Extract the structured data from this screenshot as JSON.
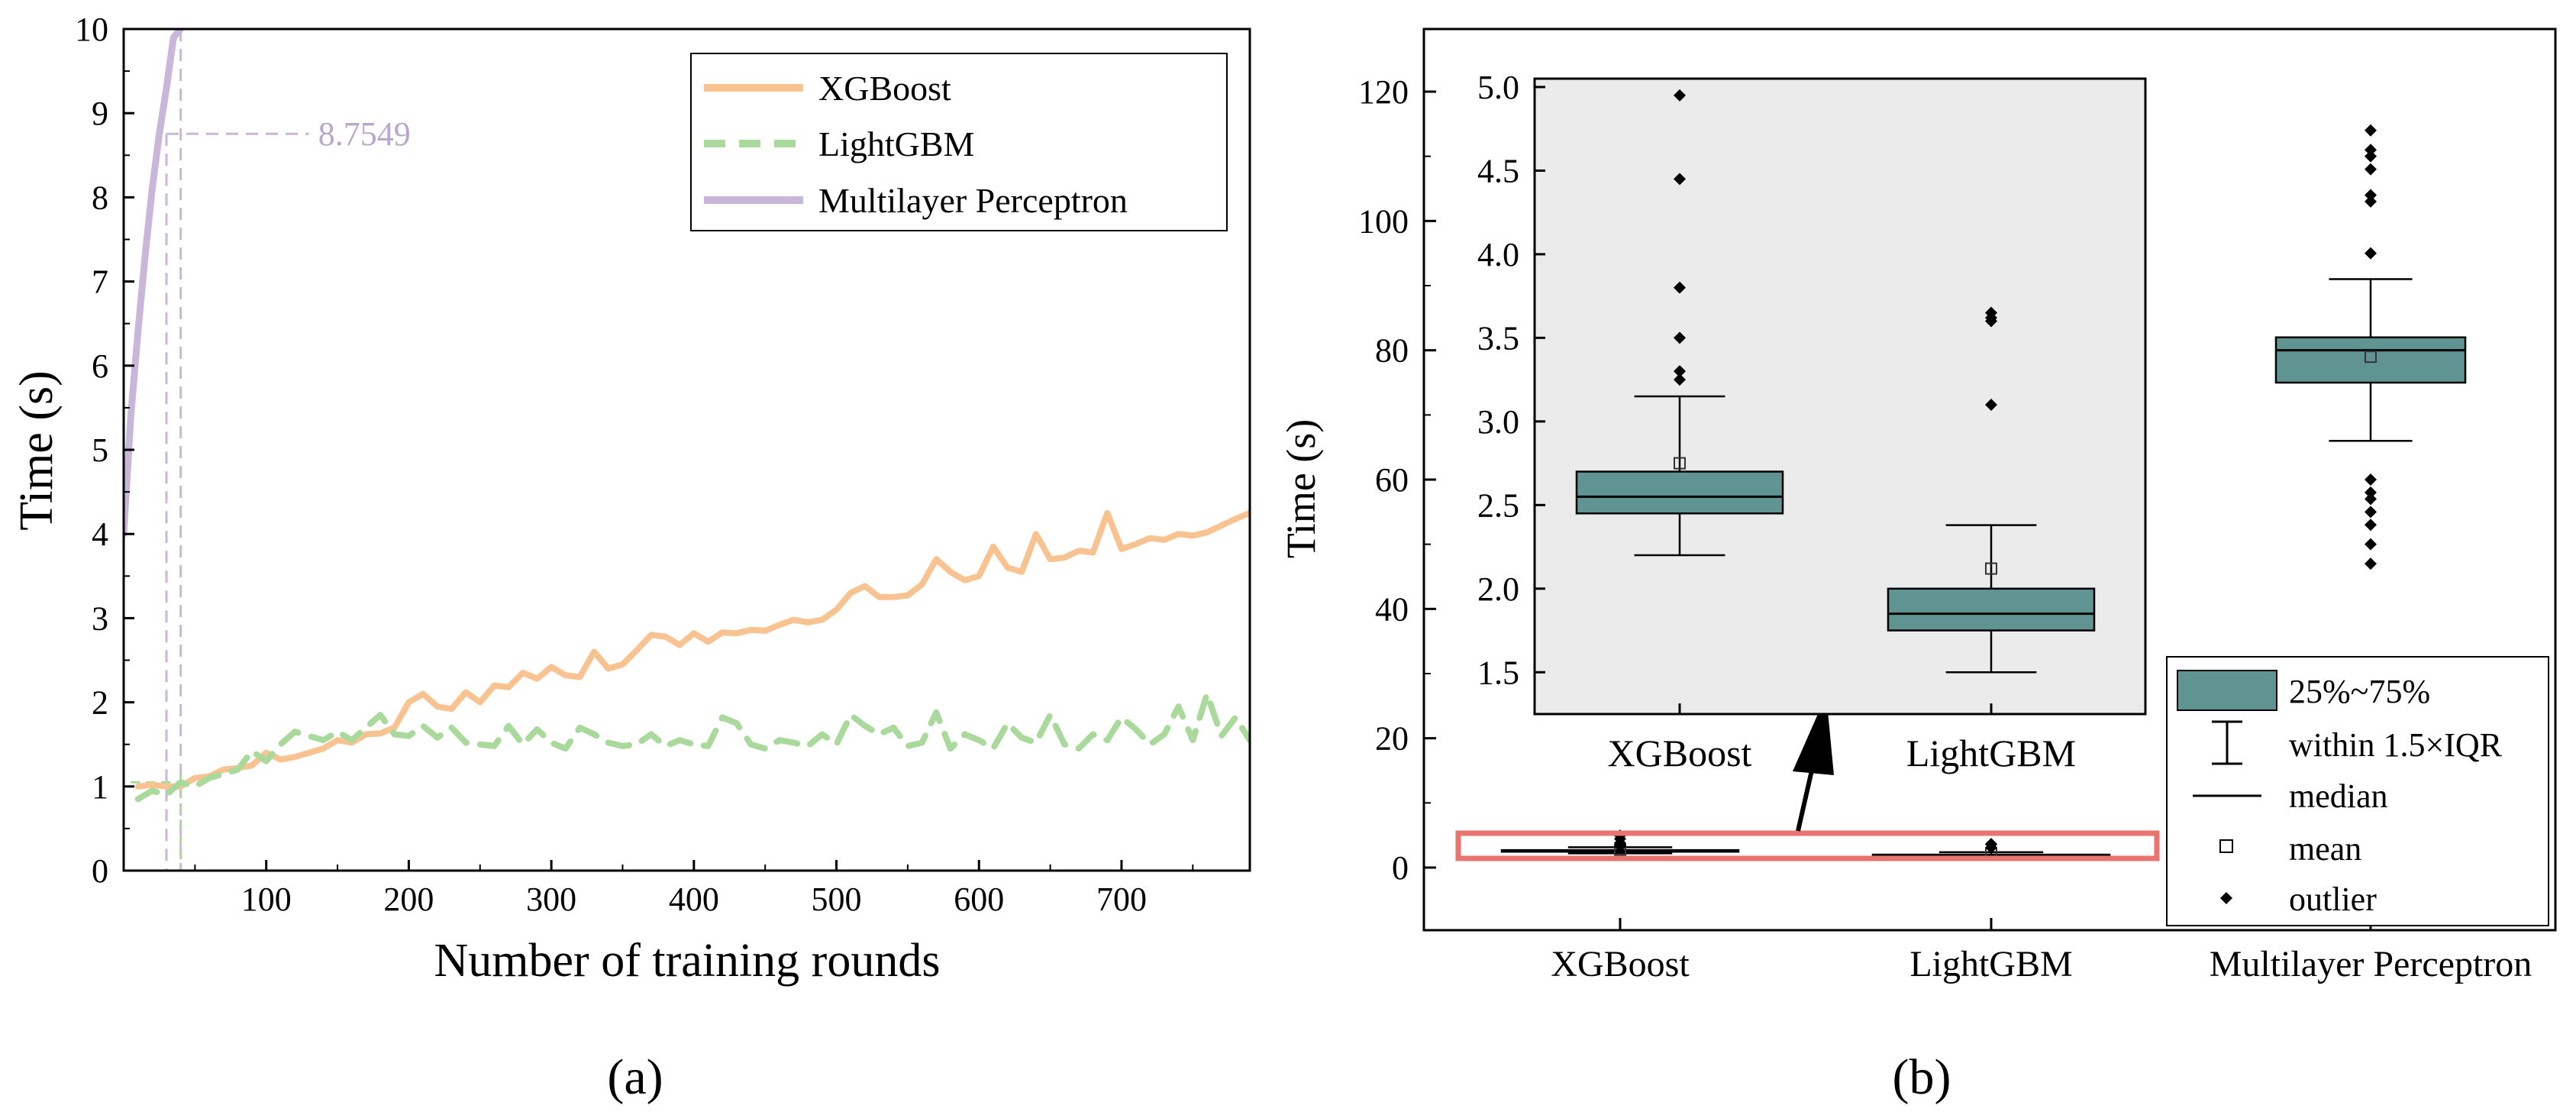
{
  "panels": {
    "a_label": "(a)",
    "b_label": "(b)"
  },
  "colors": {
    "xgboost": "#f9c391",
    "lightgbm": "#a9d99b",
    "mlp": "#c9b7d9",
    "box_fill": "#5f9493",
    "inset_bg": "#ebebeb",
    "highlight": "#e8736f"
  },
  "chart_data": [
    {
      "type": "line",
      "xlabel": "Number of training rounds",
      "ylabel": "Time (s)",
      "xlim": [
        0,
        790
      ],
      "ylim": [
        0,
        10
      ],
      "x_ticks": [
        "100",
        "200",
        "300",
        "400",
        "500",
        "600",
        "700"
      ],
      "y_ticks": [
        "0",
        "1",
        "2",
        "3",
        "4",
        "5",
        "6",
        "7",
        "8",
        "9",
        "10"
      ],
      "legend_position": "top-right",
      "grid": false,
      "annotation": {
        "text": "8.7549",
        "y": 8.7549,
        "x": 30
      },
      "series": [
        {
          "name": "XGBoost",
          "style": "solid",
          "x": [
            10,
            20,
            30,
            40,
            50,
            60,
            70,
            80,
            90,
            100,
            110,
            120,
            130,
            140,
            150,
            160,
            170,
            180,
            190,
            200,
            210,
            220,
            230,
            240,
            250,
            260,
            270,
            280,
            290,
            300,
            310,
            320,
            330,
            340,
            350,
            360,
            370,
            380,
            390,
            400,
            410,
            420,
            430,
            440,
            450,
            460,
            470,
            480,
            490,
            500,
            510,
            520,
            530,
            540,
            550,
            560,
            570,
            580,
            590,
            600,
            610,
            620,
            630,
            640,
            650,
            660,
            670,
            680,
            690,
            700,
            710,
            720,
            730,
            740,
            750,
            760,
            770,
            780,
            790
          ],
          "values": [
            1.0,
            1.02,
            1.0,
            1.0,
            1.1,
            1.12,
            1.2,
            1.22,
            1.25,
            1.4,
            1.32,
            1.35,
            1.4,
            1.45,
            1.55,
            1.52,
            1.62,
            1.63,
            1.7,
            2.0,
            2.1,
            1.95,
            1.92,
            2.12,
            2.0,
            2.2,
            2.18,
            2.35,
            2.28,
            2.42,
            2.32,
            2.3,
            2.6,
            2.4,
            2.45,
            2.62,
            2.8,
            2.78,
            2.68,
            2.82,
            2.72,
            2.83,
            2.82,
            2.86,
            2.85,
            2.92,
            2.98,
            2.95,
            2.98,
            3.1,
            3.3,
            3.38,
            3.25,
            3.25,
            3.27,
            3.4,
            3.7,
            3.55,
            3.45,
            3.5,
            3.85,
            3.6,
            3.55,
            4.0,
            3.7,
            3.72,
            3.8,
            3.78,
            4.25,
            3.82,
            3.88,
            3.95,
            3.93,
            4.0,
            3.98,
            4.02,
            4.1,
            4.18,
            4.25
          ]
        },
        {
          "name": "LightGBM",
          "style": "dashed",
          "x": [
            10,
            20,
            30,
            40,
            50,
            60,
            70,
            80,
            90,
            100,
            110,
            120,
            130,
            140,
            150,
            160,
            170,
            180,
            190,
            200,
            210,
            220,
            230,
            240,
            250,
            260,
            270,
            280,
            290,
            300,
            310,
            320,
            330,
            340,
            350,
            360,
            370,
            380,
            390,
            400,
            410,
            420,
            430,
            440,
            450,
            460,
            470,
            480,
            490,
            500,
            510,
            520,
            530,
            540,
            550,
            560,
            570,
            580,
            590,
            600,
            610,
            620,
            630,
            640,
            650,
            660,
            670,
            680,
            690,
            700,
            710,
            720,
            730,
            740,
            750,
            760,
            770,
            780,
            790
          ],
          "values": [
            0.85,
            0.95,
            0.9,
            1.05,
            1.0,
            1.1,
            1.15,
            1.2,
            1.42,
            1.3,
            1.5,
            1.65,
            1.6,
            1.55,
            1.65,
            1.55,
            1.7,
            1.85,
            1.62,
            1.6,
            1.72,
            1.58,
            1.7,
            1.52,
            1.5,
            1.48,
            1.72,
            1.5,
            1.68,
            1.52,
            1.45,
            1.7,
            1.62,
            1.52,
            1.48,
            1.5,
            1.62,
            1.48,
            1.55,
            1.5,
            1.48,
            1.82,
            1.75,
            1.5,
            1.45,
            1.55,
            1.52,
            1.48,
            1.62,
            1.5,
            1.85,
            1.72,
            1.62,
            1.7,
            1.48,
            1.52,
            1.88,
            1.45,
            1.62,
            1.55,
            1.45,
            1.75,
            1.58,
            1.52,
            1.85,
            1.5,
            1.45,
            1.62,
            1.55,
            1.82,
            1.68,
            1.5,
            1.62,
            1.95,
            1.55,
            2.1,
            1.6,
            1.82,
            1.55
          ]
        },
        {
          "name": "Multilayer Perceptron",
          "style": "solid",
          "x": [
            0,
            5,
            10,
            15,
            20,
            25,
            30,
            35,
            40
          ],
          "values": [
            4.0,
            5.4,
            6.4,
            7.3,
            8.1,
            8.7549,
            9.3,
            9.9,
            10.0
          ]
        }
      ]
    },
    {
      "type": "box",
      "ylabel": "Time (s)",
      "categories": [
        "XGBoost",
        "LightGBM",
        "Multilayer Perceptron"
      ],
      "ylim": [
        -10,
        125
      ],
      "y_ticks": [
        "0",
        "20",
        "40",
        "60",
        "80",
        "100",
        "120"
      ],
      "boxes": [
        {
          "q1": 2.45,
          "median": 2.55,
          "q3": 2.7,
          "whisker_low": 2.2,
          "whisker_high": 3.15,
          "mean": 2.75,
          "outliers": [
            3.25,
            3.5,
            4.45,
            4.95,
            3.3,
            3.8
          ]
        },
        {
          "q1": 1.75,
          "median": 1.85,
          "q3": 2.0,
          "whisker_low": 1.5,
          "whisker_high": 2.38,
          "mean": 2.12,
          "outliers": [
            3.6,
            3.62,
            3.65,
            3.1
          ]
        },
        {
          "q1": 75,
          "median": 80,
          "q3": 82,
          "whisker_low": 66,
          "whisker_high": 91,
          "mean": 79,
          "outliers": [
            47,
            50,
            53,
            55,
            57,
            58,
            60,
            95,
            103,
            104,
            108,
            110,
            111,
            114
          ]
        }
      ],
      "inset": {
        "categories": [
          "XGBoost",
          "LightGBM"
        ],
        "ylim": [
          1.25,
          5.05
        ],
        "y_ticks": [
          "1.5",
          "2.0",
          "2.5",
          "3.0",
          "3.5",
          "4.0",
          "4.5",
          "5.0"
        ]
      },
      "legend": [
        "25%~75%",
        "within 1.5×IQR",
        "median",
        "mean",
        "outlier"
      ],
      "legend_position": "bottom-right"
    }
  ]
}
